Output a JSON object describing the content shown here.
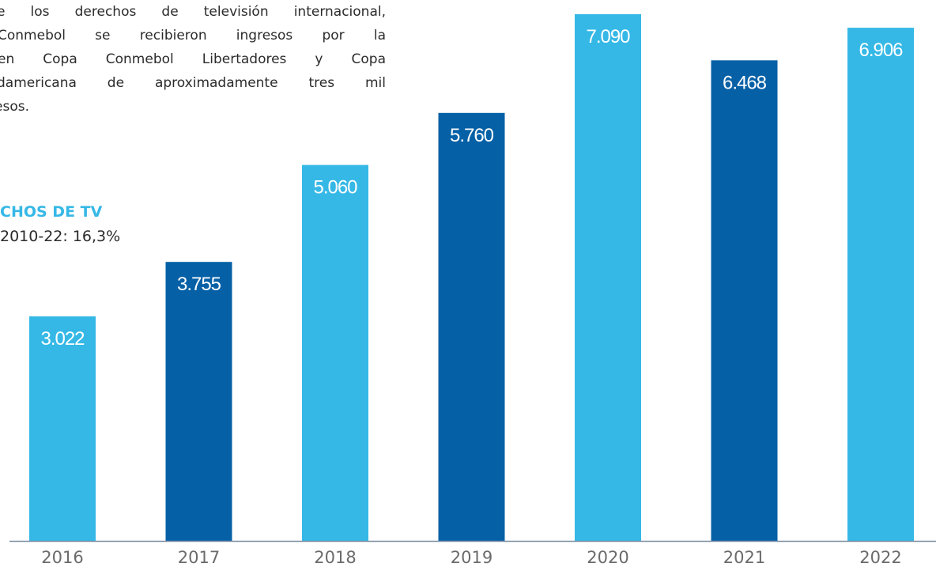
{
  "intro": {
    "lines": [
      "e los derechos de televisión internacional,",
      "Conmebol se recibieron ingresos por la",
      "en Copa Conmebol Libertadores y Copa",
      "damericana de aproximadamente tres mil",
      "esos."
    ]
  },
  "metric": {
    "title": "CHOS DE TV",
    "subtitle": "2010-22: 16,3%"
  },
  "colors": {
    "light_blue": "#35b8e6",
    "dark_blue": "#0560a6",
    "axis": "#7a8ca3",
    "tick_text": "#6b6b6b"
  },
  "chart_data": {
    "type": "bar",
    "categories": [
      "2016",
      "2017",
      "2018",
      "2019",
      "2020",
      "2021",
      "2022"
    ],
    "values": [
      3022,
      3755,
      5060,
      5760,
      7090,
      6468,
      6906
    ],
    "value_labels": [
      "3.022",
      "3.755",
      "5.060",
      "5.760",
      "7.090",
      "6.468",
      "6.906"
    ],
    "bar_colors": [
      "#35b8e6",
      "#0560a6",
      "#35b8e6",
      "#0560a6",
      "#35b8e6",
      "#0560a6",
      "#35b8e6"
    ],
    "xlabel": "",
    "ylabel": "",
    "ylim": [
      0,
      7280
    ],
    "grid": false,
    "legend": "none"
  }
}
